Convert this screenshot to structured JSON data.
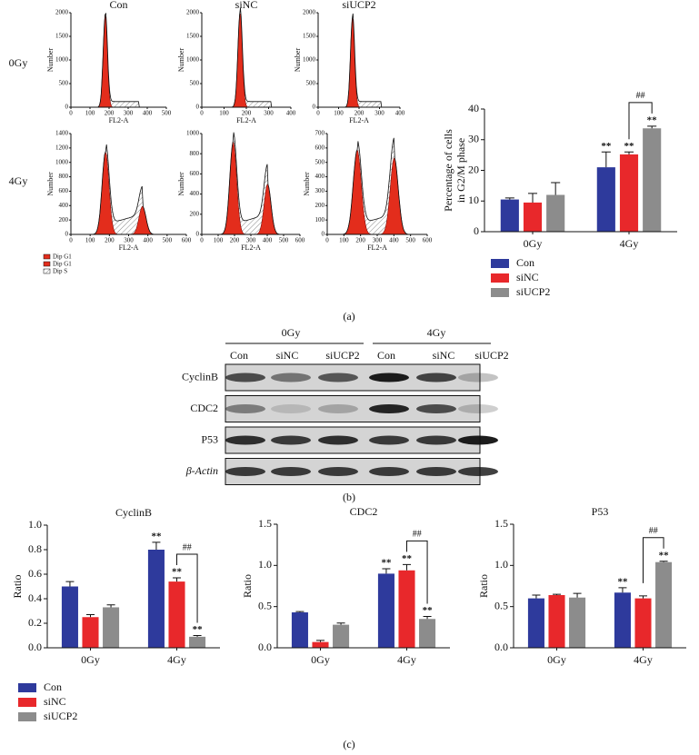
{
  "panel_labels": [
    "(a)",
    "(b)",
    "(c)"
  ],
  "flow": {
    "col_titles": [
      "Con",
      "siNC",
      "siUCP2"
    ],
    "row_labels": [
      "0Gy",
      "4Gy"
    ],
    "x_label": "FL2-A",
    "y_label": "Number",
    "legend": [
      "Dip G1",
      "Dip G1",
      "Dip S"
    ],
    "plots": [
      {
        "xlim": [
          0,
          500
        ],
        "xticks": [
          0,
          100,
          200,
          300,
          400,
          500
        ],
        "ylim": [
          0,
          2000
        ],
        "yticks": [
          0,
          500,
          1000,
          1500,
          2000
        ]
      },
      {
        "xlim": [
          0,
          400
        ],
        "xticks": [
          0,
          100,
          200,
          300,
          400
        ],
        "ylim": [
          0,
          2000
        ],
        "yticks": [
          0,
          500,
          1000,
          1500,
          2000
        ]
      },
      {
        "xlim": [
          0,
          400
        ],
        "xticks": [
          0,
          100,
          200,
          300,
          400
        ],
        "ylim": [
          0,
          2000
        ],
        "yticks": [
          0,
          500,
          1000,
          1500,
          2000
        ]
      },
      {
        "xlim": [
          0,
          600
        ],
        "xticks": [
          0,
          100,
          200,
          300,
          400,
          500,
          600
        ],
        "ylim": [
          0,
          1400
        ],
        "yticks": [
          0,
          200,
          400,
          600,
          800,
          1000,
          1200,
          1400
        ]
      },
      {
        "xlim": [
          0,
          600
        ],
        "xticks": [
          0,
          100,
          200,
          300,
          400,
          500,
          600
        ],
        "ylim": [
          0,
          1000
        ],
        "yticks": [
          0,
          200,
          400,
          600,
          800,
          1000
        ]
      },
      {
        "xlim": [
          0,
          600
        ],
        "xticks": [
          0,
          100,
          200,
          300,
          400,
          500,
          600
        ],
        "ylim": [
          0,
          700
        ],
        "yticks": [
          0,
          100,
          200,
          300,
          400,
          500,
          600,
          700
        ]
      }
    ]
  },
  "blot": {
    "group_labels": [
      "0Gy",
      "4Gy"
    ],
    "lane_labels": [
      "Con",
      "siNC",
      "siUCP2",
      "Con",
      "siNC",
      "siUCP2"
    ],
    "row_labels": [
      "CyclinB",
      "CDC2",
      "P53",
      "β-Actin"
    ]
  },
  "chart_data": [
    {
      "type": "bar",
      "y_label": [
        "Percentage of cells",
        "in G2/M phase"
      ],
      "categories": [
        "0Gy",
        "4Gy"
      ],
      "series": [
        {
          "name": "Con",
          "color": "#2e3a9c",
          "values": [
            10.5,
            21
          ],
          "errors": [
            0.5,
            5
          ],
          "significance": [
            null,
            "**"
          ]
        },
        {
          "name": "siNC",
          "color": "#e8282b",
          "values": [
            9.5,
            25.2
          ],
          "errors": [
            3,
            0.8
          ],
          "significance": [
            null,
            "**"
          ]
        },
        {
          "name": "siUCP2",
          "color": "#8c8c8c",
          "values": [
            12,
            33.7
          ],
          "errors": [
            4,
            0.7
          ],
          "significance": [
            null,
            "**"
          ]
        }
      ],
      "bracket": "##",
      "ylim": [
        0,
        40
      ],
      "yticks": [
        0,
        10,
        20,
        30,
        40
      ],
      "legend": true
    },
    {
      "type": "bar",
      "title": "CyclinB",
      "y_label": [
        "Ratio"
      ],
      "categories": [
        "0Gy",
        "4Gy"
      ],
      "series": [
        {
          "name": "Con",
          "color": "#2e3a9c",
          "values": [
            0.5,
            0.8
          ],
          "errors": [
            0.04,
            0.06
          ],
          "significance": [
            null,
            "**"
          ]
        },
        {
          "name": "siNC",
          "color": "#e8282b",
          "values": [
            0.25,
            0.54
          ],
          "errors": [
            0.02,
            0.03
          ],
          "significance": [
            null,
            "**"
          ]
        },
        {
          "name": "siUCP2",
          "color": "#8c8c8c",
          "values": [
            0.33,
            0.09
          ],
          "errors": [
            0.02,
            0.01
          ],
          "significance": [
            null,
            "**"
          ]
        }
      ],
      "bracket": "##",
      "ylim": [
        0,
        1
      ],
      "yticks": [
        {
          "value": 0,
          "label": "0.0"
        },
        0.2,
        0.4,
        0.6,
        0.8,
        {
          "value": 1,
          "label": "1.0"
        }
      ],
      "legend": true
    },
    {
      "type": "bar",
      "title": "CDC2",
      "y_label": [
        "Ratio"
      ],
      "categories": [
        "0Gy",
        "4Gy"
      ],
      "series": [
        {
          "name": "Con",
          "color": "#2e3a9c",
          "values": [
            0.43,
            0.9
          ],
          "errors": [
            0.01,
            0.06
          ],
          "significance": [
            null,
            "**"
          ]
        },
        {
          "name": "siNC",
          "color": "#e8282b",
          "values": [
            0.07,
            0.94
          ],
          "errors": [
            0.02,
            0.07
          ],
          "significance": [
            null,
            "**"
          ]
        },
        {
          "name": "siUCP2",
          "color": "#8c8c8c",
          "values": [
            0.28,
            0.35
          ],
          "errors": [
            0.02,
            0.03
          ],
          "significance": [
            null,
            "**"
          ]
        }
      ],
      "bracket": "##",
      "ylim": [
        0,
        1.5
      ],
      "yticks": [
        {
          "value": 0,
          "label": "0.0"
        },
        0.5,
        {
          "value": 1,
          "label": "1.0"
        },
        1.5
      ],
      "legend": false
    },
    {
      "type": "bar",
      "title": "P53",
      "y_label": [
        "Ratio"
      ],
      "categories": [
        "0Gy",
        "4Gy"
      ],
      "series": [
        {
          "name": "Con",
          "color": "#2e3a9c",
          "values": [
            0.6,
            0.67
          ],
          "errors": [
            0.04,
            0.06
          ],
          "significance": [
            null,
            "**"
          ]
        },
        {
          "name": "siNC",
          "color": "#e8282b",
          "values": [
            0.64,
            0.6
          ],
          "errors": [
            0.01,
            0.03
          ],
          "significance": [
            null,
            null
          ]
        },
        {
          "name": "siUCP2",
          "color": "#8c8c8c",
          "values": [
            0.61,
            1.04
          ],
          "errors": [
            0.05,
            0.01
          ],
          "significance": [
            null,
            "**"
          ]
        }
      ],
      "bracket": "##",
      "ylim": [
        0,
        1.5
      ],
      "yticks": [
        {
          "value": 0,
          "label": "0.0"
        },
        0.5,
        {
          "value": 1,
          "label": "1.0"
        },
        1.5
      ],
      "legend": false
    }
  ]
}
